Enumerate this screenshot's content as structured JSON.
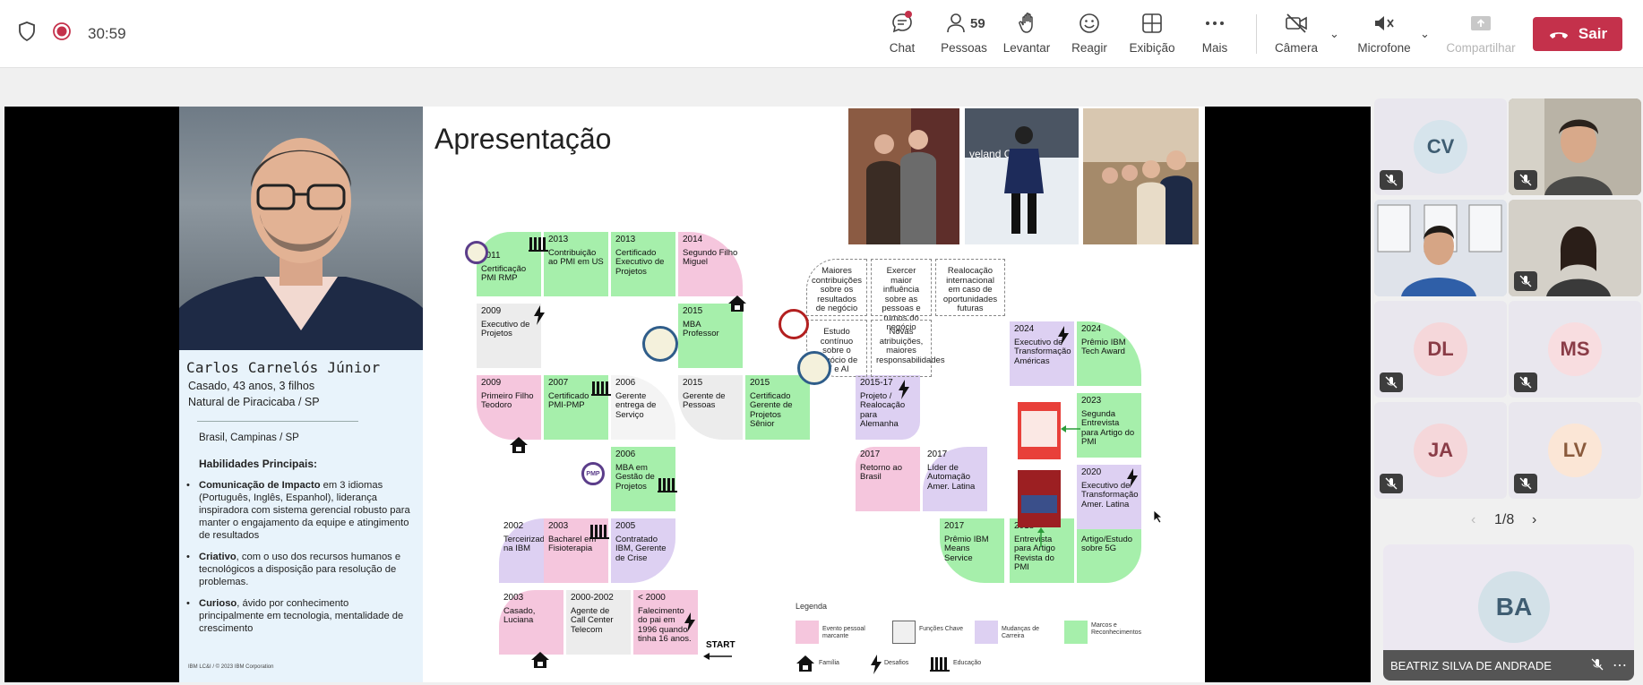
{
  "topbar": {
    "timer": "30:59",
    "chat": "Chat",
    "people": "Pessoas",
    "people_count": "59",
    "raise": "Levantar",
    "react": "Reagir",
    "view": "Exibição",
    "more": "Mais",
    "camera": "Câmera",
    "mic": "Microfone",
    "share": "Compartilhar",
    "leave": "Sair"
  },
  "colors": {
    "accent_red": "#c4314b",
    "pink": "#f5c6dd",
    "grey": "#ececec",
    "purple": "#ddd0f2",
    "green": "#a6efab"
  },
  "bio": {
    "name": "Carlos Carnelós Júnior",
    "line1": "Casado, 43 anos, 3 filhos",
    "line2": "Natural de Piracicaba / SP",
    "location": "Brasil, Campinas / SP",
    "skills_heading": "Habilidades Principais:",
    "s1_title": "Comunicação de Impacto",
    "s1_text": " em 3 idiomas (Português, Inglês, Espanhol), liderança inspiradora com sistema gerencial robusto para manter o engajamento  da equipe e atingimento de resultados",
    "s2_title": "Criativo",
    "s2_text": ", com o uso dos recursos humanos e tecnológicos a disposição para resolução de problemas.",
    "s3_title": "Curioso",
    "s3_text": ", ávido por conhecimento principalmente em tecnologia, mentalidade de crescimento",
    "footer": "IBM LC&I / © 2023 IBM Corporation"
  },
  "slide": {
    "title": "Apresentação",
    "tiles": [
      {
        "year": "2011",
        "text": "Certificação PMI RMP"
      },
      {
        "year": "2013",
        "text": "Contribuição ao PMI em US"
      },
      {
        "year": "2013",
        "text": "Certificado Executivo de Projetos"
      },
      {
        "year": "2014",
        "text": "Segundo Filho Miguel"
      },
      {
        "year": "2009",
        "text": "Executivo de Projetos"
      },
      {
        "year": "2015",
        "text": "MBA Professor"
      },
      {
        "year": "2009",
        "text": "Primeiro Filho Teodoro"
      },
      {
        "year": "2007",
        "text": "Certificado PMI-PMP"
      },
      {
        "year": "2006",
        "text": "Gerente entrega de Serviço"
      },
      {
        "year": "2015",
        "text": "Gerente de Pessoas"
      },
      {
        "year": "2015",
        "text": "Certificado Gerente de Projetos Sênior"
      },
      {
        "year": "2015-17",
        "text": "Projeto / Realocação para Alemanha"
      },
      {
        "year": "2006",
        "text": "MBA em Gestão de Projetos"
      },
      {
        "year": "2017",
        "text": "Retorno ao Brasil"
      },
      {
        "year": "2017",
        "text": "Líder de Automação Amer. Latina"
      },
      {
        "year": "2002",
        "text": "Terceirizado na IBM"
      },
      {
        "year": "2003",
        "text": "Bacharel em Fisioterapia"
      },
      {
        "year": "2005",
        "text": "Contratado IBM, Gerente de Crise"
      },
      {
        "year": "2017",
        "text": "Prêmio IBM Means Service"
      },
      {
        "year": "2018",
        "text": "Entrevista para Artigo Revista do PMI"
      },
      {
        "year": "2020",
        "text": "Artigo/Estudo sobre 5G"
      },
      {
        "year": "2003",
        "text": "Casado, Luciana"
      },
      {
        "year": "2000-2002",
        "text": "Agente de Call Center Telecom"
      },
      {
        "year": "< 2000",
        "text": "Falecimento do pai em 1996 quando tinha 16 anos."
      },
      {
        "year": "2024",
        "text": "Executivo de Transformação Américas"
      },
      {
        "year": "2024",
        "text": "Prêmio IBM Tech Award"
      },
      {
        "year": "2023",
        "text": "Segunda Entrevista para Artigo do PMI"
      },
      {
        "year": "2020",
        "text": "Executivo de Transformação Amer. Latina"
      }
    ],
    "goals": [
      "Maiores contribuições sobre os resultados de negócio",
      "Exercer maior influência sobre as pessoas e rumos do negócio",
      "Realocação internacional em caso de oportunidades futuras",
      "Estudo contínuo sobre o negócio de IT e AI",
      "Novas atribuições, maiores responsabilidades"
    ],
    "start": "START",
    "legend": {
      "title": "Legenda",
      "pink": "Evento pessoal marcante",
      "grey": "Funções Chave",
      "purple": "Mudanças de Carreira",
      "green": "Marcos e Reconhecimentos",
      "family": "Família",
      "challenges": "Desafios",
      "education": "Educação"
    },
    "badge_pmp": "PMP",
    "photo_sign": "veland C"
  },
  "participants": [
    {
      "initials": "CV",
      "color": "#d6e4ec",
      "text": "#3f5d72"
    },
    {
      "initials": "DL",
      "color": "#f5d7da",
      "text": "#8a3c47"
    },
    {
      "initials": "MS",
      "color": "#f8dde0",
      "text": "#8a3c47"
    },
    {
      "initials": "JA",
      "color": "#f5d7da",
      "text": "#8a3c47"
    },
    {
      "initials": "LV",
      "color": "#fbe6d6",
      "text": "#8a5a3c"
    }
  ],
  "pager": "1/8",
  "featured": {
    "initials": "BA",
    "name": "BEATRIZ SILVA DE ANDRADE"
  }
}
